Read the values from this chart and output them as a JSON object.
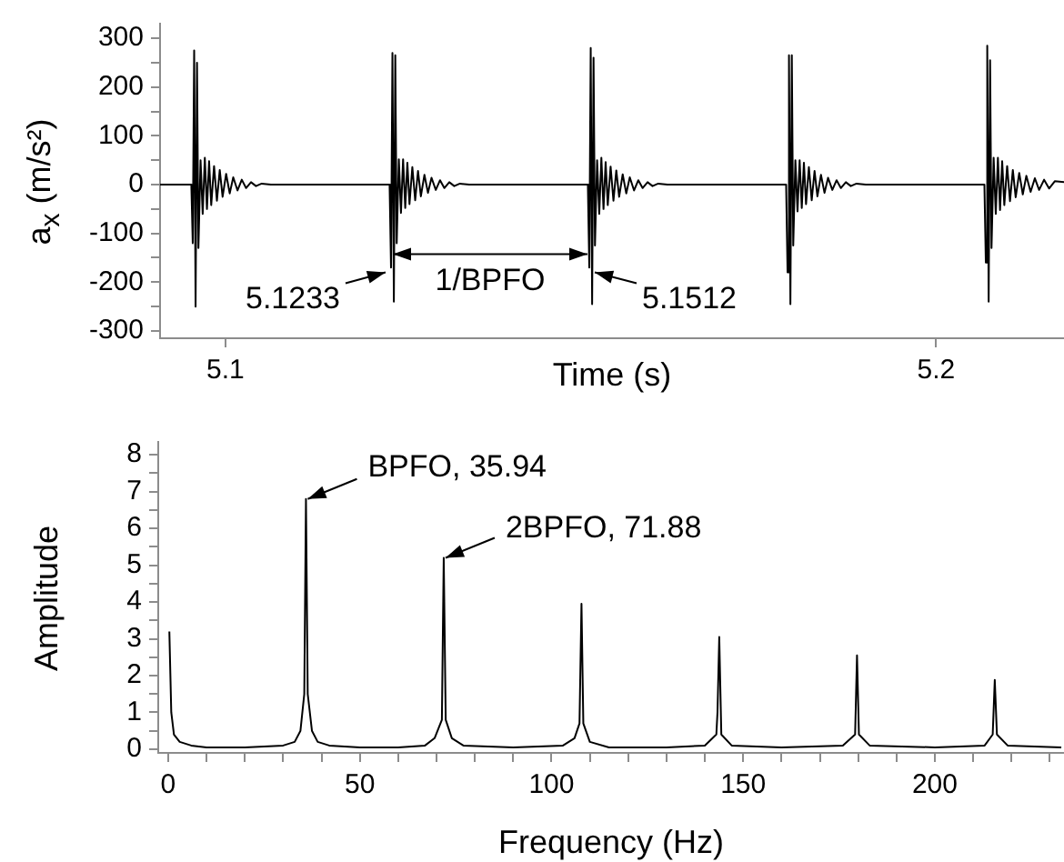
{
  "chart_data": [
    {
      "type": "line",
      "xlabel": "Time (s)",
      "ylabel": "a$_{x}$ (m/s²)",
      "color": "#000000",
      "xlim": [
        5.0908,
        5.218
      ],
      "ylim": [
        -315,
        330
      ],
      "xticks": [
        5.1,
        5.2
      ],
      "yticks": [
        -300,
        {
          "value": -250,
          "label": null
        },
        -200,
        {
          "value": -150,
          "label": null
        },
        -100,
        {
          "value": -50,
          "label": null
        },
        0,
        {
          "value": 50,
          "label": null
        },
        100,
        {
          "value": 150,
          "label": null
        },
        200,
        {
          "value": 250,
          "label": null
        },
        300
      ],
      "x": [
        5.0908,
        5.0952,
        5.0954,
        5.0956,
        5.0958,
        5.096,
        5.0962,
        5.0965,
        5.0968,
        5.0971,
        5.0974,
        5.0977,
        5.098,
        5.0984,
        5.0988,
        5.0992,
        5.0996,
        5.1001,
        5.1006,
        5.1011,
        5.1017,
        5.1023,
        5.1029,
        5.1036,
        5.1043,
        5.1051,
        5.1064,
        5.1231,
        5.1233,
        5.1235,
        5.1237,
        5.1239,
        5.1241,
        5.1244,
        5.1247,
        5.125,
        5.1253,
        5.1256,
        5.1259,
        5.1263,
        5.1267,
        5.1271,
        5.1275,
        5.128,
        5.1285,
        5.129,
        5.1296,
        5.1302,
        5.1308,
        5.1315,
        5.1322,
        5.133,
        5.1343,
        5.151,
        5.1512,
        5.1514,
        5.1516,
        5.1518,
        5.152,
        5.1523,
        5.1526,
        5.1529,
        5.1532,
        5.1535,
        5.1538,
        5.1542,
        5.1546,
        5.155,
        5.1554,
        5.1559,
        5.1564,
        5.1569,
        5.1575,
        5.1581,
        5.1587,
        5.1594,
        5.1601,
        5.1609,
        5.1622,
        5.1789,
        5.1791,
        5.1793,
        5.1795,
        5.1797,
        5.1799,
        5.1802,
        5.1805,
        5.1808,
        5.1811,
        5.1814,
        5.1817,
        5.1821,
        5.1825,
        5.1829,
        5.1833,
        5.1838,
        5.1843,
        5.1848,
        5.1854,
        5.186,
        5.1866,
        5.1873,
        5.188,
        5.1888,
        5.1901,
        5.2068,
        5.207,
        5.2072,
        5.2074,
        5.2076,
        5.2078,
        5.2081,
        5.2084,
        5.2087,
        5.209,
        5.2093,
        5.2096,
        5.21,
        5.2104,
        5.2108,
        5.2112,
        5.2117,
        5.2122,
        5.2127,
        5.2133,
        5.2139,
        5.2145,
        5.2152,
        5.2159,
        5.2167,
        5.218
      ],
      "values": [
        0,
        0,
        -120,
        275,
        -250,
        250,
        -130,
        50,
        -60,
        55,
        -50,
        48,
        -42,
        38,
        -33,
        30,
        -25,
        22,
        -18,
        15,
        -12,
        10,
        -7,
        5,
        -3,
        2,
        0,
        0,
        -170,
        270,
        -240,
        265,
        -120,
        52,
        -58,
        52,
        -48,
        45,
        -40,
        36,
        -32,
        28,
        -24,
        20,
        -17,
        14,
        -11,
        9,
        -7,
        5,
        -3,
        2,
        0,
        0,
        -170,
        280,
        -245,
        260,
        -125,
        50,
        -60,
        55,
        -50,
        46,
        -42,
        37,
        -33,
        29,
        -25,
        21,
        -18,
        15,
        -12,
        9,
        -7,
        5,
        -3,
        2,
        0,
        0,
        -180,
        265,
        -245,
        265,
        -125,
        50,
        -55,
        50,
        -48,
        45,
        -40,
        36,
        -32,
        28,
        -24,
        20,
        -17,
        14,
        -11,
        9,
        -7,
        5,
        -3,
        2,
        0,
        0,
        -160,
        285,
        -240,
        255,
        -130,
        55,
        -60,
        55,
        -52,
        48,
        -42,
        38,
        -34,
        30,
        -26,
        24,
        -20,
        18,
        -15,
        13,
        -11,
        10,
        -8,
        7,
        5
      ],
      "annotations": [
        {
          "text": "5.1233",
          "x": 5.1233,
          "y": -180
        },
        {
          "text": "5.1512",
          "x": 5.1512,
          "y": -180
        },
        "1/BPFO"
      ]
    },
    {
      "type": "line",
      "xlabel": "Frequency (Hz)",
      "ylabel": "Amplitude",
      "color": "#000000",
      "xlim": [
        -2.6,
        233.7
      ],
      "ylim": [
        -0.1,
        8.35
      ],
      "xticks": [
        0,
        {
          "value": 10,
          "label": null
        },
        {
          "value": 20,
          "label": null
        },
        {
          "value": 30,
          "label": null
        },
        {
          "value": 40,
          "label": null
        },
        50,
        {
          "value": 60,
          "label": null
        },
        {
          "value": 70,
          "label": null
        },
        {
          "value": 80,
          "label": null
        },
        {
          "value": 90,
          "label": null
        },
        100,
        {
          "value": 110,
          "label": null
        },
        {
          "value": 120,
          "label": null
        },
        {
          "value": 130,
          "label": null
        },
        {
          "value": 140,
          "label": null
        },
        150,
        {
          "value": 160,
          "label": null
        },
        {
          "value": 170,
          "label": null
        },
        {
          "value": 180,
          "label": null
        },
        {
          "value": 190,
          "label": null
        },
        200,
        {
          "value": 210,
          "label": null
        },
        {
          "value": 220,
          "label": null
        },
        {
          "value": 230,
          "label": null
        }
      ],
      "yticks": [
        0,
        {
          "value": 0.5,
          "label": null
        },
        1,
        {
          "value": 1.5,
          "label": null
        },
        2,
        {
          "value": 2.5,
          "label": null
        },
        3,
        {
          "value": 3.5,
          "label": null
        },
        4,
        {
          "value": 4.5,
          "label": null
        },
        5,
        {
          "value": 5.5,
          "label": null
        },
        6,
        {
          "value": 6.5,
          "label": null
        },
        7,
        {
          "value": 7.5,
          "label": null
        },
        8
      ],
      "x": [
        0.3,
        0.8,
        1.5,
        3,
        6,
        10,
        20,
        30,
        33,
        34.5,
        35.5,
        35.94,
        36.4,
        37.5,
        39,
        42,
        50,
        60,
        67,
        69.5,
        71.4,
        71.88,
        72.4,
        74,
        77,
        90,
        103,
        106,
        107.3,
        107.82,
        108.3,
        110,
        115,
        130,
        140,
        143,
        143.3,
        143.76,
        144.3,
        147,
        160,
        176,
        179.2,
        179.7,
        180.2,
        183,
        200,
        213,
        215.1,
        215.64,
        216.2,
        219,
        233
      ],
      "values": [
        3.2,
        1.0,
        0.4,
        0.2,
        0.1,
        0.05,
        0.05,
        0.1,
        0.2,
        0.5,
        1.5,
        6.8,
        1.5,
        0.5,
        0.2,
        0.1,
        0.05,
        0.05,
        0.1,
        0.3,
        0.8,
        5.2,
        0.8,
        0.3,
        0.1,
        0.05,
        0.1,
        0.3,
        0.7,
        3.95,
        0.7,
        0.2,
        0.05,
        0.05,
        0.1,
        0.4,
        1.0,
        3.05,
        0.4,
        0.1,
        0.05,
        0.1,
        0.4,
        2.55,
        0.4,
        0.1,
        0.05,
        0.1,
        0.4,
        1.88,
        0.4,
        0.1,
        0.05
      ],
      "annotations": [
        {
          "text": "BPFO, 35.94",
          "x": 35.94,
          "y": 6.8
        },
        {
          "text": "2BPFO, 71.88",
          "x": 71.88,
          "y": 5.2
        }
      ]
    }
  ]
}
